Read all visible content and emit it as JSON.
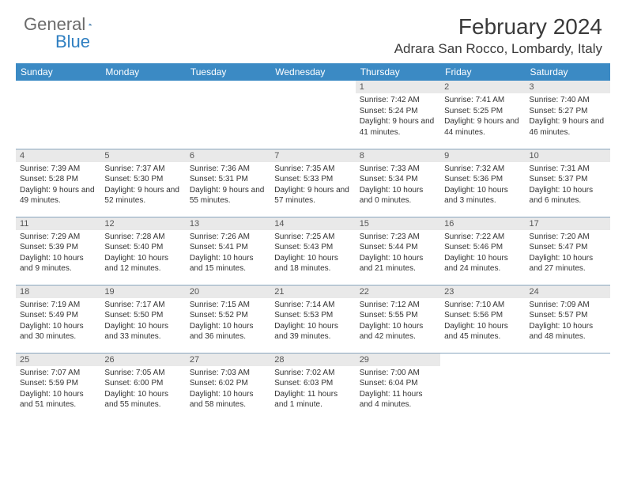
{
  "logo": {
    "general": "General",
    "blue": "Blue"
  },
  "title": "February 2024",
  "location": "Adrara San Rocco, Lombardy, Italy",
  "colors": {
    "header_bg": "#3b8ac4",
    "header_text": "#ffffff",
    "daynum_bg": "#e9e9e9",
    "daynum_text": "#555555",
    "body_text": "#333333",
    "rule": "#8aa7bf",
    "logo_gray": "#6b6b6b",
    "logo_blue": "#2f7fc1",
    "title_text": "#3a3a3a"
  },
  "weekdays": [
    "Sunday",
    "Monday",
    "Tuesday",
    "Wednesday",
    "Thursday",
    "Friday",
    "Saturday"
  ],
  "weeks": [
    [
      null,
      null,
      null,
      null,
      {
        "n": "1",
        "sr": "7:42 AM",
        "ss": "5:24 PM",
        "dl": "9 hours and 41 minutes."
      },
      {
        "n": "2",
        "sr": "7:41 AM",
        "ss": "5:25 PM",
        "dl": "9 hours and 44 minutes."
      },
      {
        "n": "3",
        "sr": "7:40 AM",
        "ss": "5:27 PM",
        "dl": "9 hours and 46 minutes."
      }
    ],
    [
      {
        "n": "4",
        "sr": "7:39 AM",
        "ss": "5:28 PM",
        "dl": "9 hours and 49 minutes."
      },
      {
        "n": "5",
        "sr": "7:37 AM",
        "ss": "5:30 PM",
        "dl": "9 hours and 52 minutes."
      },
      {
        "n": "6",
        "sr": "7:36 AM",
        "ss": "5:31 PM",
        "dl": "9 hours and 55 minutes."
      },
      {
        "n": "7",
        "sr": "7:35 AM",
        "ss": "5:33 PM",
        "dl": "9 hours and 57 minutes."
      },
      {
        "n": "8",
        "sr": "7:33 AM",
        "ss": "5:34 PM",
        "dl": "10 hours and 0 minutes."
      },
      {
        "n": "9",
        "sr": "7:32 AM",
        "ss": "5:36 PM",
        "dl": "10 hours and 3 minutes."
      },
      {
        "n": "10",
        "sr": "7:31 AM",
        "ss": "5:37 PM",
        "dl": "10 hours and 6 minutes."
      }
    ],
    [
      {
        "n": "11",
        "sr": "7:29 AM",
        "ss": "5:39 PM",
        "dl": "10 hours and 9 minutes."
      },
      {
        "n": "12",
        "sr": "7:28 AM",
        "ss": "5:40 PM",
        "dl": "10 hours and 12 minutes."
      },
      {
        "n": "13",
        "sr": "7:26 AM",
        "ss": "5:41 PM",
        "dl": "10 hours and 15 minutes."
      },
      {
        "n": "14",
        "sr": "7:25 AM",
        "ss": "5:43 PM",
        "dl": "10 hours and 18 minutes."
      },
      {
        "n": "15",
        "sr": "7:23 AM",
        "ss": "5:44 PM",
        "dl": "10 hours and 21 minutes."
      },
      {
        "n": "16",
        "sr": "7:22 AM",
        "ss": "5:46 PM",
        "dl": "10 hours and 24 minutes."
      },
      {
        "n": "17",
        "sr": "7:20 AM",
        "ss": "5:47 PM",
        "dl": "10 hours and 27 minutes."
      }
    ],
    [
      {
        "n": "18",
        "sr": "7:19 AM",
        "ss": "5:49 PM",
        "dl": "10 hours and 30 minutes."
      },
      {
        "n": "19",
        "sr": "7:17 AM",
        "ss": "5:50 PM",
        "dl": "10 hours and 33 minutes."
      },
      {
        "n": "20",
        "sr": "7:15 AM",
        "ss": "5:52 PM",
        "dl": "10 hours and 36 minutes."
      },
      {
        "n": "21",
        "sr": "7:14 AM",
        "ss": "5:53 PM",
        "dl": "10 hours and 39 minutes."
      },
      {
        "n": "22",
        "sr": "7:12 AM",
        "ss": "5:55 PM",
        "dl": "10 hours and 42 minutes."
      },
      {
        "n": "23",
        "sr": "7:10 AM",
        "ss": "5:56 PM",
        "dl": "10 hours and 45 minutes."
      },
      {
        "n": "24",
        "sr": "7:09 AM",
        "ss": "5:57 PM",
        "dl": "10 hours and 48 minutes."
      }
    ],
    [
      {
        "n": "25",
        "sr": "7:07 AM",
        "ss": "5:59 PM",
        "dl": "10 hours and 51 minutes."
      },
      {
        "n": "26",
        "sr": "7:05 AM",
        "ss": "6:00 PM",
        "dl": "10 hours and 55 minutes."
      },
      {
        "n": "27",
        "sr": "7:03 AM",
        "ss": "6:02 PM",
        "dl": "10 hours and 58 minutes."
      },
      {
        "n": "28",
        "sr": "7:02 AM",
        "ss": "6:03 PM",
        "dl": "11 hours and 1 minute."
      },
      {
        "n": "29",
        "sr": "7:00 AM",
        "ss": "6:04 PM",
        "dl": "11 hours and 4 minutes."
      },
      null,
      null
    ]
  ],
  "labels": {
    "sunrise": "Sunrise:",
    "sunset": "Sunset:",
    "daylight": "Daylight:"
  }
}
